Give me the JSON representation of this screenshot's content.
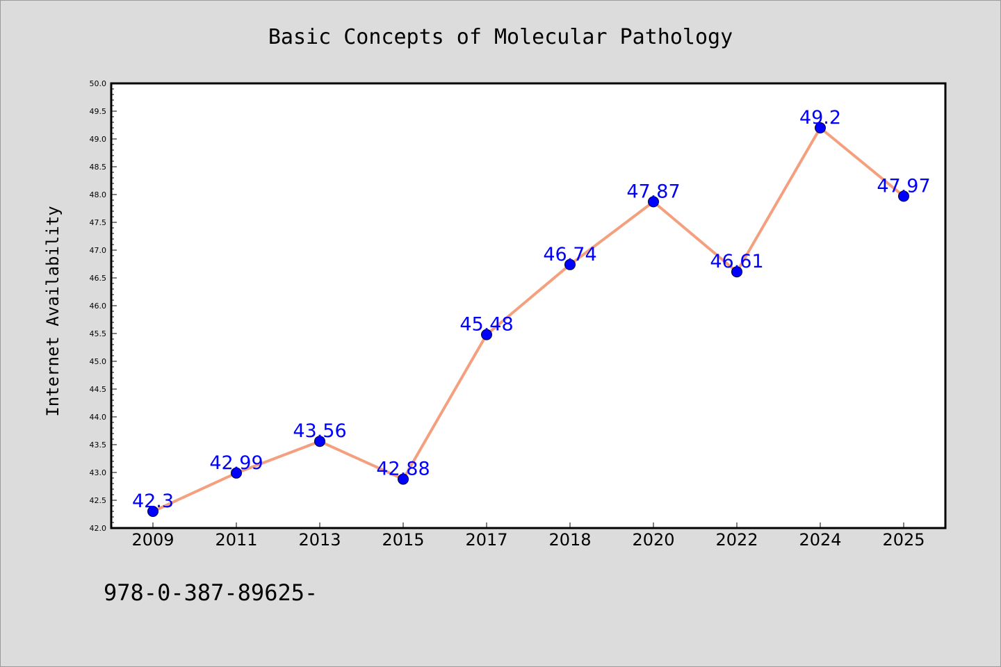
{
  "chart_data": {
    "type": "line",
    "title": "Basic Concepts of Molecular Pathology",
    "xlabel": "",
    "ylabel": "Internet Availability",
    "categories": [
      "2009",
      "2011",
      "2013",
      "2015",
      "2017",
      "2018",
      "2020",
      "2022",
      "2024",
      "2025"
    ],
    "series": [
      {
        "values": [
          42.3,
          42.99,
          43.56,
          42.88,
          45.48,
          46.74,
          47.87,
          46.61,
          49.2,
          47.97
        ],
        "labels": [
          "42.3",
          "42.99",
          "43.56",
          "42.88",
          "45.48",
          "46.74",
          "47.87",
          "46.61",
          "49.2",
          "47.97"
        ]
      }
    ],
    "ylim": [
      42.0,
      50.0
    ],
    "yticks": [
      "42.0",
      "42.5",
      "43.0",
      "43.5",
      "44.0",
      "44.5",
      "45.0",
      "45.5",
      "46.0",
      "46.5",
      "47.0",
      "47.5",
      "48.0",
      "48.5",
      "49.0",
      "49.5",
      "50.0"
    ],
    "grid": false,
    "legend": "none",
    "colors": {
      "line": "#f4a07e",
      "marker": "#0000ff",
      "data_label": "#0000ff",
      "plot_background": "#ffffff",
      "figure_background": "#dcdcdc"
    }
  },
  "footer": {
    "text": "978-0-387-89625-"
  }
}
